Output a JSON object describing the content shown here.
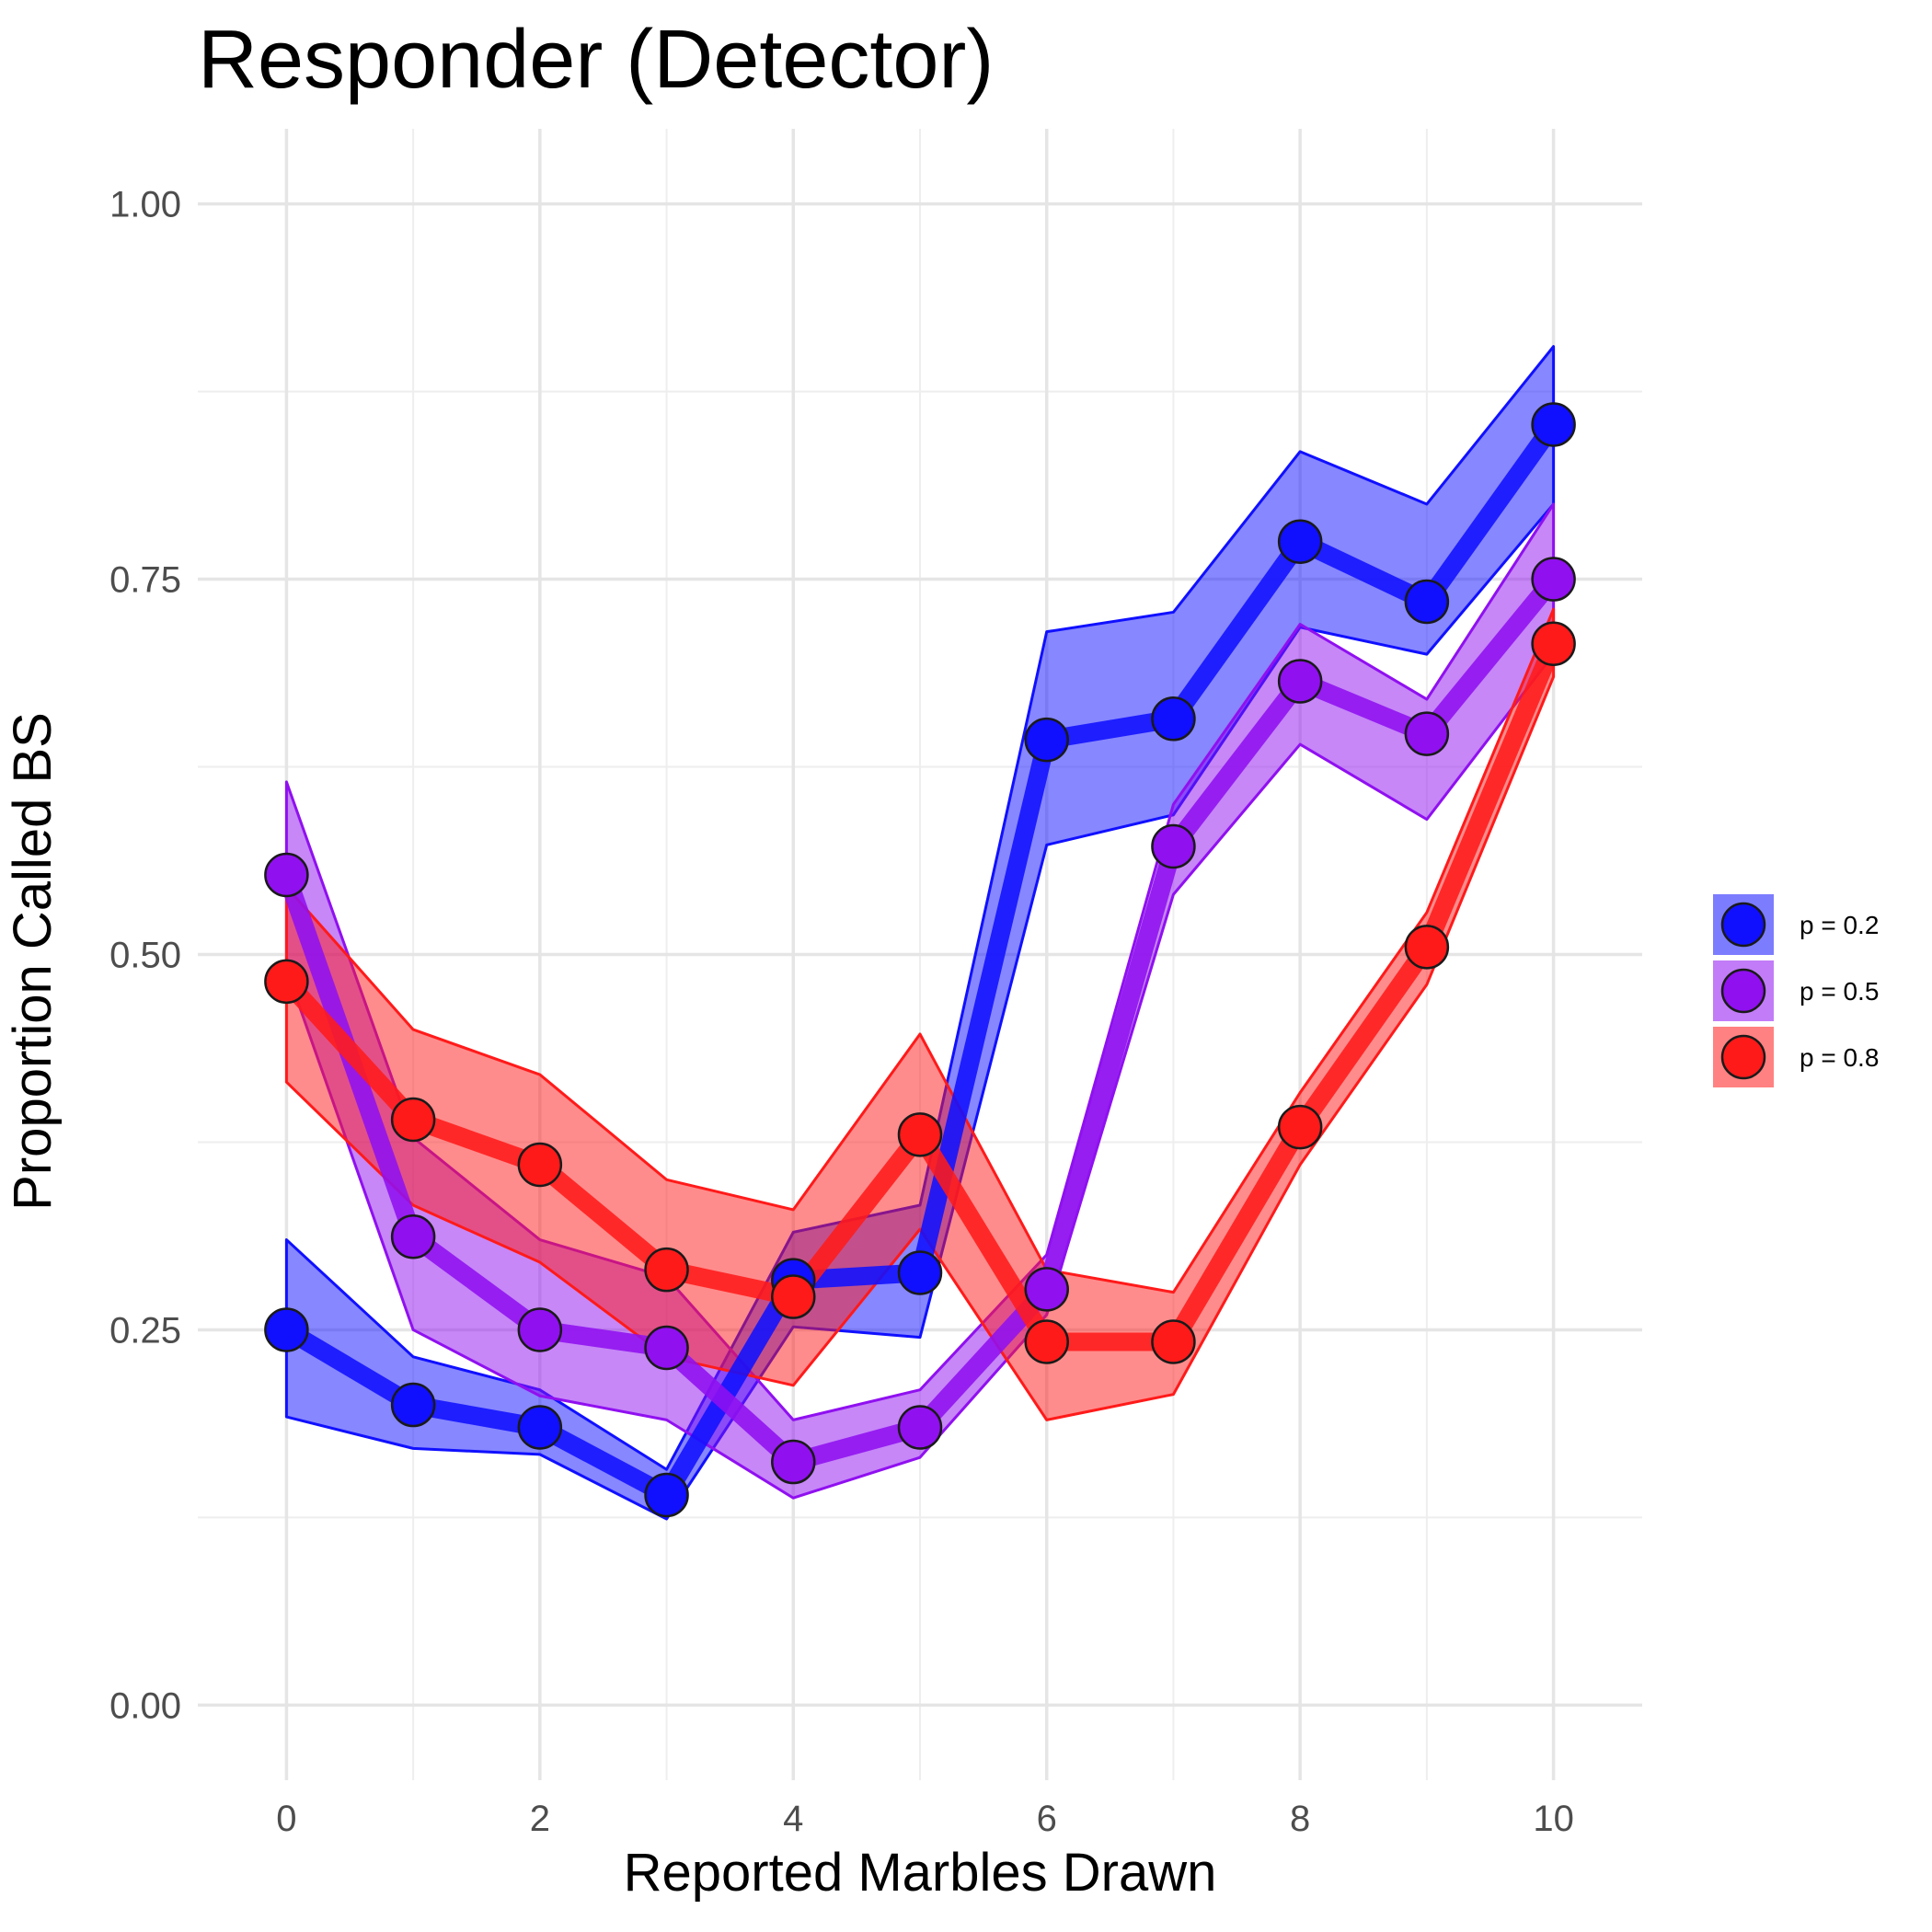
{
  "chart_data": {
    "type": "line",
    "title": "Responder (Detector)",
    "xlabel": "Reported Marbles Drawn",
    "ylabel": "Proportion Called BS",
    "xlim": [
      -0.7,
      10.7
    ],
    "ylim": [
      -0.05,
      1.05
    ],
    "x_ticks": [
      0,
      2,
      4,
      6,
      8,
      10
    ],
    "x_tick_labels": [
      "0",
      "2",
      "4",
      "6",
      "8",
      "10"
    ],
    "y_ticks": [
      0.0,
      0.25,
      0.5,
      0.75,
      1.0
    ],
    "y_tick_labels": [
      "0.00",
      "0.25",
      "0.50",
      "0.75",
      "1.00"
    ],
    "grid": true,
    "legend_position": "right",
    "x": [
      0,
      1,
      2,
      3,
      4,
      5,
      6,
      7,
      8,
      9,
      10
    ],
    "series": [
      {
        "name": "p = 0.2",
        "color": "#1010ff",
        "values": [
          0.25,
          0.2,
          0.185,
          0.14,
          0.283,
          0.288,
          0.643,
          0.657,
          0.775,
          0.735,
          0.853
        ],
        "lower": [
          0.192,
          0.171,
          0.167,
          0.124,
          0.252,
          0.245,
          0.573,
          0.593,
          0.718,
          0.7,
          0.8
        ],
        "upper": [
          0.31,
          0.232,
          0.21,
          0.157,
          0.315,
          0.333,
          0.715,
          0.728,
          0.835,
          0.8,
          0.905
        ]
      },
      {
        "name": "p = 0.5",
        "color": "#9010f0",
        "values": [
          0.553,
          0.312,
          0.25,
          0.238,
          0.162,
          0.185,
          0.277,
          0.572,
          0.682,
          0.647,
          0.75
        ],
        "lower": [
          0.49,
          0.25,
          0.206,
          0.19,
          0.138,
          0.165,
          0.26,
          0.54,
          0.64,
          0.59,
          0.7
        ],
        "upper": [
          0.615,
          0.378,
          0.31,
          0.285,
          0.19,
          0.21,
          0.3,
          0.6,
          0.72,
          0.67,
          0.8
        ]
      },
      {
        "name": "p = 0.8",
        "color": "#ff1a1a",
        "values": [
          0.482,
          0.39,
          0.36,
          0.29,
          0.272,
          0.38,
          0.242,
          0.242,
          0.385,
          0.505,
          0.707
        ],
        "lower": [
          0.415,
          0.333,
          0.295,
          0.232,
          0.213,
          0.317,
          0.19,
          0.207,
          0.36,
          0.48,
          0.685
        ],
        "upper": [
          0.545,
          0.45,
          0.42,
          0.35,
          0.33,
          0.447,
          0.29,
          0.275,
          0.408,
          0.528,
          0.73
        ]
      }
    ]
  }
}
